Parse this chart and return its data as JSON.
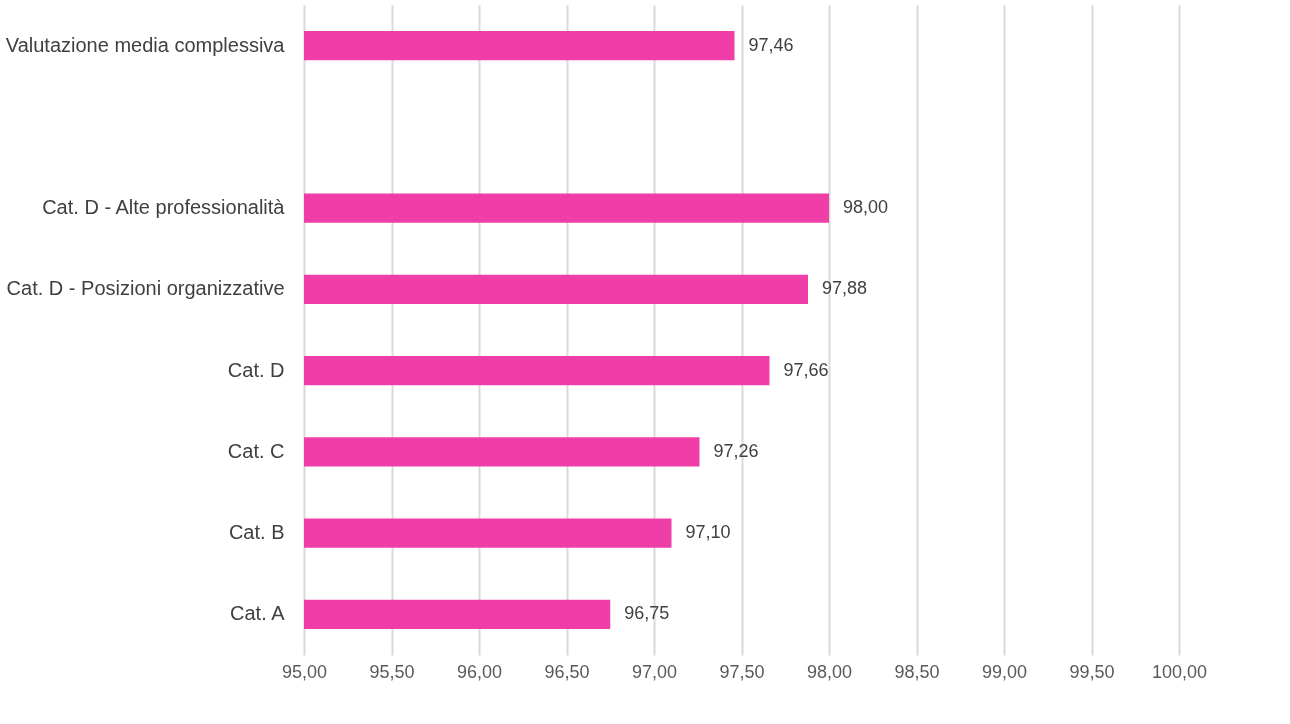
{
  "chart_data": {
    "type": "bar",
    "orientation": "horizontal",
    "categories": [
      "Valutazione media complessiva",
      null,
      "Cat. D - Alte professionalità",
      "Cat. D - Posizioni organizzative",
      "Cat. D",
      "Cat. C",
      "Cat. B",
      "Cat. A"
    ],
    "values": [
      97.46,
      null,
      98.0,
      97.88,
      97.66,
      97.26,
      97.1,
      96.75
    ],
    "value_labels": [
      "97,46",
      null,
      "98,00",
      "97,88",
      "97,66",
      "97,26",
      "97,10",
      "96,75"
    ],
    "color": "#f03ea8",
    "xlim": [
      95,
      100
    ],
    "xticks": [
      {
        "value": 95,
        "label": "95,00"
      },
      {
        "value": 95.5,
        "label": "95,50"
      },
      {
        "value": 96,
        "label": "96,00"
      },
      {
        "value": 96.5,
        "label": "96,50"
      },
      {
        "value": 97,
        "label": "97,00"
      },
      {
        "value": 97.5,
        "label": "97,50"
      },
      {
        "value": 98,
        "label": "98,00"
      },
      {
        "value": 98.5,
        "label": "98,50"
      },
      {
        "value": 99,
        "label": "99,00"
      },
      {
        "value": 99.5,
        "label": "99,50"
      },
      {
        "value": 100,
        "label": "100,00"
      }
    ],
    "grid": "x"
  }
}
